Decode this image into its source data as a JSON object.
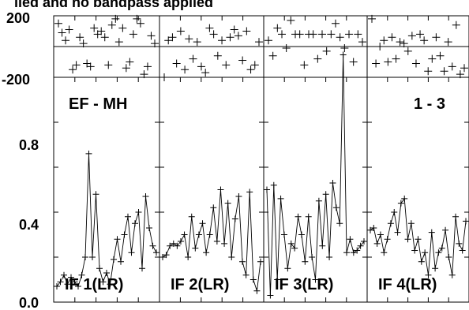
{
  "title": "lied and no bandpass applied",
  "baseline_label": "EF - MH",
  "corr_label": "1 - 3",
  "phase_ticks": [
    "200",
    "-200"
  ],
  "amp_ticks": [
    "0.8",
    "0.4",
    "0.0"
  ],
  "chart_data": {
    "type": "line",
    "phase_ylim": [
      -200,
      200
    ],
    "amp_ylim": [
      0.0,
      1.0
    ],
    "panels": [
      {
        "label": "IF 1(LR)",
        "phase": [
          150,
          90,
          40,
          110,
          -150,
          -120,
          60,
          20,
          -110,
          -130,
          120,
          80,
          100,
          60,
          -120,
          140,
          180,
          30,
          120,
          -140,
          -100,
          80,
          180,
          150,
          -180,
          -130,
          70,
          20
        ],
        "amp": [
          0.07,
          0.09,
          0.12,
          0.08,
          0.11,
          0.09,
          0.07,
          0.12,
          0.2,
          0.66,
          0.2,
          0.48,
          0.15,
          0.09,
          0.13,
          0.08,
          0.19,
          0.28,
          0.18,
          0.3,
          0.38,
          0.22,
          0.35,
          0.4,
          0.15,
          0.47,
          0.33,
          0.25,
          0.22
        ]
      },
      {
        "label": "IF 2(LR)",
        "phase": [
          -200,
          40,
          60,
          -110,
          100,
          -150,
          50,
          -80,
          30,
          -130,
          -170,
          120,
          80,
          -60,
          40,
          -120,
          60,
          110,
          70,
          -90,
          100,
          -150,
          -120,
          30
        ],
        "amp": [
          0.2,
          0.21,
          0.25,
          0.26,
          0.25,
          0.27,
          0.3,
          0.2,
          0.38,
          0.24,
          0.3,
          0.35,
          0.22,
          0.3,
          0.42,
          0.27,
          0.5,
          0.26,
          0.44,
          0.2,
          0.37,
          0.47,
          0.18,
          0.12,
          0.49,
          0.1,
          0.05,
          0.18
        ]
      },
      {
        "label": "IF 3(LR)",
        "phase": [
          40,
          -60,
          120,
          80,
          -10,
          170,
          80,
          80,
          -120,
          80,
          80,
          -80,
          80,
          -30,
          80,
          150,
          60,
          -10,
          80,
          -100,
          80,
          30
        ],
        "amp": [
          0.5,
          0.03,
          0.52,
          0.1,
          0.46,
          0.3,
          0.15,
          0.26,
          0.24,
          0.38,
          0.3,
          0.18,
          0.38,
          0.2,
          0.1,
          0.45,
          0.25,
          0.48,
          0.2,
          0.53,
          0.42,
          0.35,
          1.1,
          0.22,
          0.28,
          0.22,
          0.23,
          0.25,
          0.27
        ]
      },
      {
        "label": "IF 4(LR)",
        "phase": [
          180,
          -110,
          0,
          40,
          -100,
          60,
          -80,
          30,
          20,
          -30,
          70,
          -110,
          80,
          40,
          -160,
          -80,
          60,
          -60,
          -160,
          30,
          -130,
          140,
          -180,
          -140
        ],
        "amp": [
          0.32,
          0.33,
          0.26,
          0.3,
          0.22,
          0.28,
          0.35,
          0.4,
          0.31,
          0.44,
          0.46,
          0.28,
          0.35,
          0.23,
          0.28,
          0.18,
          0.22,
          0.12,
          0.31,
          0.15,
          0.22,
          0.24,
          0.32,
          0.2,
          0.12,
          0.38,
          0.26,
          0.23,
          0.36
        ]
      }
    ]
  }
}
